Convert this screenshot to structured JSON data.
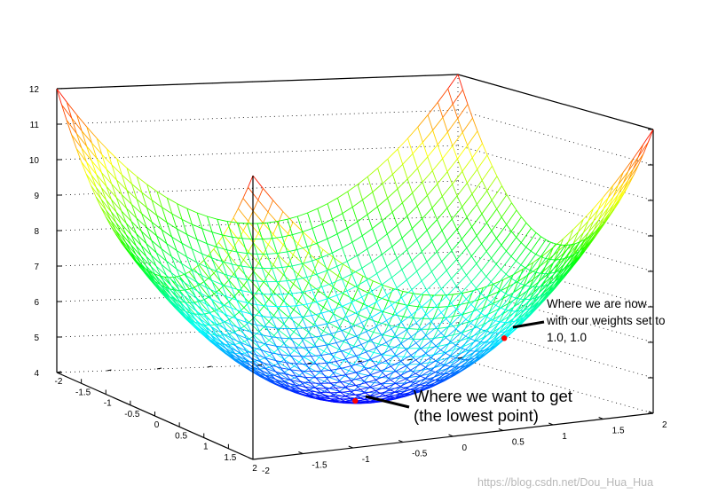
{
  "chart_data": {
    "type": "surface",
    "function": "z = 4 + x^2 + y^2",
    "x_range": [
      -2,
      2
    ],
    "y_range": [
      -2,
      2
    ],
    "zlim": [
      4,
      12
    ],
    "grid_resolution": 40,
    "colormap": [
      "#0000ff",
      "#00ffff",
      "#00ff00",
      "#ffff00",
      "#ff0000"
    ],
    "z_ticks": [
      "4",
      "5",
      "6",
      "7",
      "8",
      "9",
      "10",
      "11",
      "12"
    ],
    "x_ticks": [
      "-2",
      "-1.5",
      "-1",
      "-0.5",
      "0",
      "0.5",
      "1",
      "1.5",
      "2"
    ],
    "y_ticks": [
      "-2",
      "-1.5",
      "-1",
      "-0.5",
      "0",
      "0.5",
      "1",
      "1.5",
      "2"
    ],
    "marked_points": [
      {
        "x": 0,
        "y": 0,
        "z": 4,
        "color": "#ff0000"
      },
      {
        "x": 1,
        "y": 1,
        "z": 6,
        "color": "#ff0000"
      }
    ]
  },
  "annotations": {
    "current": {
      "lines": [
        "Where we are now",
        "with our weights set to",
        "1.0, 1.0"
      ]
    },
    "goal": {
      "lines": [
        "Where we want to get",
        "(the lowest point)"
      ]
    }
  },
  "watermark": "https://blog.csdn.net/Dou_Hua_Hua"
}
